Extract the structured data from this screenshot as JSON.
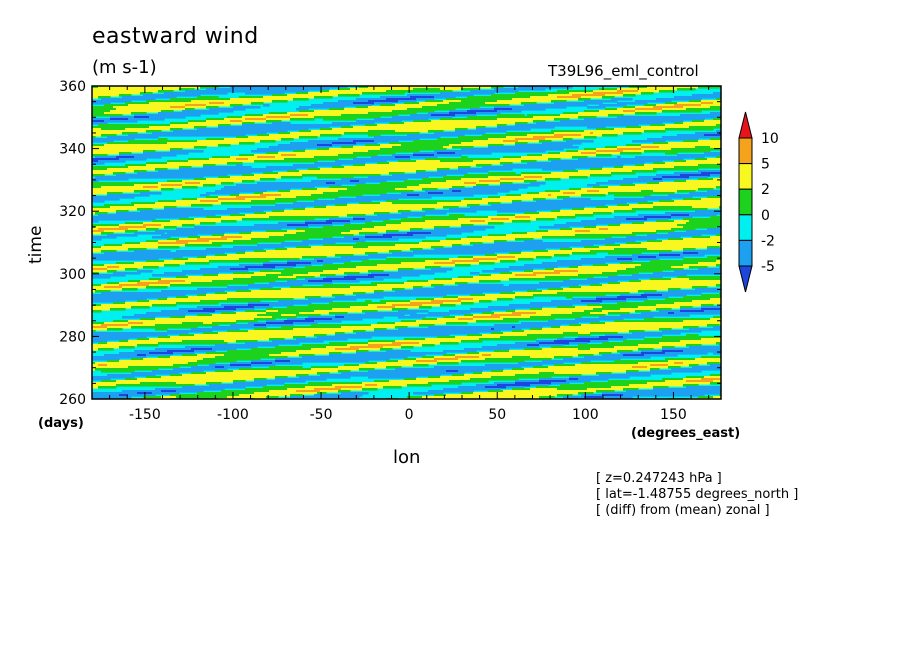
{
  "chart_data": {
    "type": "heatmap",
    "title": "eastward wind",
    "units": "(m s-1)",
    "subtitle_right": "T39L96_eml_control",
    "xlabel": "lon",
    "xunits": "(degrees_east)",
    "ylabel": "time",
    "yunits": "(days)",
    "xlim": [
      -180,
      177
    ],
    "ylim": [
      260,
      360
    ],
    "xticks": [
      "-150",
      "-100",
      "-50",
      "0",
      "50",
      "100",
      "150"
    ],
    "xtick_values": [
      -150,
      -100,
      -50,
      0,
      50,
      100,
      150
    ],
    "yticks": [
      "260",
      "280",
      "300",
      "320",
      "340",
      "360"
    ],
    "ytick_values": [
      260,
      280,
      300,
      320,
      340,
      360
    ],
    "colorbar": {
      "levels": [
        "10",
        "5",
        "2",
        "0",
        "-2",
        "-5"
      ],
      "level_values": [
        10,
        5,
        2,
        0,
        -2,
        -5
      ],
      "colors": [
        "#e8141c",
        "#f5a21c",
        "#f8f820",
        "#1cd21c",
        "#00f0f0",
        "#1ea0f0",
        "#1c46dc"
      ]
    },
    "notes": [
      "[ z=0.247243 hPa ]",
      "[ lat=-1.48755 degrees_north ]",
      "[ (diff) from (mean) zonal ]"
    ]
  }
}
